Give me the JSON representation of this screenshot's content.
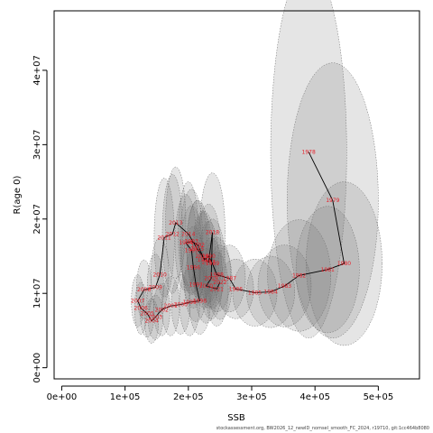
{
  "chart_data": {
    "type": "scatter",
    "title": "",
    "xlabel": "SSB",
    "ylabel": "R(age 0)",
    "xlim": [
      -12000,
      565000
    ],
    "ylim": [
      -1500000,
      48000000
    ],
    "x_ticks": [
      {
        "value": 0,
        "label": "0e+00"
      },
      {
        "value": 100000,
        "label": "1e+05"
      },
      {
        "value": 200000,
        "label": "2e+05"
      },
      {
        "value": 300000,
        "label": "3e+05"
      },
      {
        "value": 400000,
        "label": "4e+05"
      },
      {
        "value": 500000,
        "label": "5e+05"
      }
    ],
    "y_ticks": [
      {
        "value": 0,
        "label": "0e+00"
      },
      {
        "value": 10000000,
        "label": "1e+07"
      },
      {
        "value": 20000000,
        "label": "2e+07"
      },
      {
        "value": 30000000,
        "label": "3e+07"
      },
      {
        "value": 40000000,
        "label": "4e+07"
      }
    ],
    "grid": false,
    "colors": {
      "points": "#e8202a",
      "path": "#000000",
      "ellipse_fill": "#707070",
      "ellipse_stroke": "#666666"
    },
    "series": [
      {
        "points": [
          {
            "label": "1978",
            "x": 390000,
            "y": 29000000,
            "sx": 60000,
            "sy": 25000000
          },
          {
            "label": "1979",
            "x": 428000,
            "y": 22500000,
            "sx": 72000,
            "sy": 18500000
          },
          {
            "label": "1980",
            "x": 446000,
            "y": 14000000,
            "sx": 60000,
            "sy": 11000000
          },
          {
            "label": "1981",
            "x": 420000,
            "y": 13200000,
            "sx": 50000,
            "sy": 8500000
          },
          {
            "label": "1982",
            "x": 375000,
            "y": 12400000,
            "sx": 50000,
            "sy": 7500000
          },
          {
            "label": "1983",
            "x": 352000,
            "y": 11000000,
            "sx": 42000,
            "sy": 5500000
          },
          {
            "label": "1984",
            "x": 330000,
            "y": 10200000,
            "sx": 38000,
            "sy": 4800000
          },
          {
            "label": "1985",
            "x": 305000,
            "y": 10100000,
            "sx": 35000,
            "sy": 4500000
          },
          {
            "label": "1986",
            "x": 275000,
            "y": 10600000,
            "sx": 28000,
            "sy": 4000000
          },
          {
            "label": "1987",
            "x": 265000,
            "y": 12000000,
            "sx": 25000,
            "sy": 4500000
          },
          {
            "label": "1988",
            "x": 245000,
            "y": 12500000,
            "sx": 22000,
            "sy": 5000000
          },
          {
            "label": "1989",
            "x": 238000,
            "y": 14000000,
            "sx": 20000,
            "sy": 6000000
          },
          {
            "label": "1990",
            "x": 232000,
            "y": 15000000,
            "sx": 20000,
            "sy": 7000000
          },
          {
            "label": "1991",
            "x": 225000,
            "y": 14500000,
            "sx": 18000,
            "sy": 6500000
          },
          {
            "label": "1992",
            "x": 215000,
            "y": 16500000,
            "sx": 18000,
            "sy": 6000000
          },
          {
            "label": "1993",
            "x": 205000,
            "y": 17000000,
            "sx": 18000,
            "sy": 7000000
          },
          {
            "label": "1994",
            "x": 196000,
            "y": 16800000,
            "sx": 17000,
            "sy": 6500000
          },
          {
            "label": "1995",
            "x": 205000,
            "y": 15800000,
            "sx": 17000,
            "sy": 6000000
          },
          {
            "label": "1996",
            "x": 208000,
            "y": 13500000,
            "sx": 17000,
            "sy": 5500000
          },
          {
            "label": "1997",
            "x": 212000,
            "y": 11200000,
            "sx": 18000,
            "sy": 5000000
          },
          {
            "label": "1998",
            "x": 218000,
            "y": 9000000,
            "sx": 17000,
            "sy": 4500000
          },
          {
            "label": "1999",
            "x": 202000,
            "y": 8800000,
            "sx": 16000,
            "sy": 4500000
          },
          {
            "label": "2000",
            "x": 188000,
            "y": 8500000,
            "sx": 15000,
            "sy": 4000000
          },
          {
            "label": "2001",
            "x": 172000,
            "y": 8300000,
            "sx": 14000,
            "sy": 4000000
          },
          {
            "label": "2002",
            "x": 158000,
            "y": 7800000,
            "sx": 13000,
            "sy": 3500000
          },
          {
            "label": "2003",
            "x": 148000,
            "y": 6800000,
            "sx": 12000,
            "sy": 3000000
          },
          {
            "label": "2004",
            "x": 142000,
            "y": 6300000,
            "sx": 11000,
            "sy": 3000000
          },
          {
            "label": "2005",
            "x": 135000,
            "y": 7300000,
            "sx": 11000,
            "sy": 3200000
          },
          {
            "label": "2006",
            "x": 125000,
            "y": 8000000,
            "sx": 10000,
            "sy": 3500000
          },
          {
            "label": "2007",
            "x": 120000,
            "y": 9000000,
            "sx": 10000,
            "sy": 3500000
          },
          {
            "label": "2008",
            "x": 130000,
            "y": 10500000,
            "sx": 12000,
            "sy": 4000000
          },
          {
            "label": "2009",
            "x": 148000,
            "y": 10800000,
            "sx": 13000,
            "sy": 4500000
          },
          {
            "label": "2010",
            "x": 155000,
            "y": 12500000,
            "sx": 14000,
            "sy": 5000000
          },
          {
            "label": "2011",
            "x": 162000,
            "y": 17500000,
            "sx": 16000,
            "sy": 8000000
          },
          {
            "label": "2012",
            "x": 175000,
            "y": 18000000,
            "sx": 16000,
            "sy": 8000000
          },
          {
            "label": "2013",
            "x": 180000,
            "y": 19500000,
            "sx": 16000,
            "sy": 7500000
          },
          {
            "label": "2014",
            "x": 200000,
            "y": 18000000,
            "sx": 16000,
            "sy": 7000000
          },
          {
            "label": "2015",
            "x": 214000,
            "y": 16000000,
            "sx": 16000,
            "sy": 6500000
          },
          {
            "label": "2016",
            "x": 222000,
            "y": 15000000,
            "sx": 16000,
            "sy": 6000000
          },
          {
            "label": "2017",
            "x": 232000,
            "y": 14200000,
            "sx": 16000,
            "sy": 5500000
          },
          {
            "label": "2018",
            "x": 238000,
            "y": 18200000,
            "sx": 20000,
            "sy": 8000000
          },
          {
            "label": "2019",
            "x": 236000,
            "y": 12000000,
            "sx": 18000,
            "sy": 5500000
          },
          {
            "label": "2020",
            "x": 228000,
            "y": 11000000,
            "sx": 18000,
            "sy": 5000000
          },
          {
            "label": "2021",
            "x": 245000,
            "y": 10600000,
            "sx": 18000,
            "sy": 5000000
          },
          {
            "label": "2022",
            "x": 250000,
            "y": 11500000,
            "sx": 19000,
            "sy": 5000000
          }
        ]
      }
    ]
  },
  "footer": {
    "text": "stockassessment.org, BW2026_12_newID_nomsel_smooth_FC_2024, r19710, git:1cc464b8080"
  }
}
